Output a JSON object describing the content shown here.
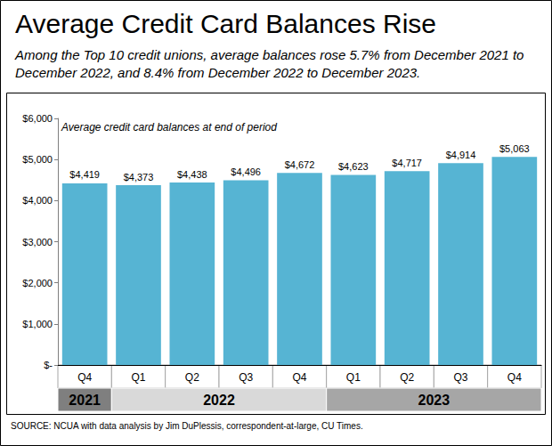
{
  "chart_data": {
    "type": "bar",
    "title": "Average Credit Card Balances Rise",
    "subtitle": "Among the Top 10 credit unions, average balances rose 5.7% from December 2021 to December 2022, and 8.4% from December 2022 to December 2023.",
    "annotation": "Average credit card balances at end of period",
    "source": "SOURCE: NCUA with data analysis by Jim DuPlessis, correspondent-at-large, CU Times.",
    "categories": [
      "Q4",
      "Q1",
      "Q2",
      "Q3",
      "Q4",
      "Q1",
      "Q2",
      "Q3",
      "Q4"
    ],
    "years": [
      "2021",
      "2022",
      "2022",
      "2022",
      "2022",
      "2023",
      "2023",
      "2023",
      "2023"
    ],
    "values": [
      4419,
      4373,
      4438,
      4496,
      4672,
      4623,
      4717,
      4914,
      5063
    ],
    "value_labels": [
      "$4,419",
      "$4,373",
      "$4,438",
      "$4,496",
      "$4,672",
      "$4,623",
      "$4,717",
      "$4,914",
      "$5,063"
    ],
    "color": "#56b4d3",
    "ylim": [
      0,
      6000
    ],
    "yticks": [
      {
        "value": 0,
        "label": "$-"
      },
      {
        "value": 1000,
        "label": "$1,000"
      },
      {
        "value": 2000,
        "label": "$2,000"
      },
      {
        "value": 3000,
        "label": "$3,000"
      },
      {
        "value": 4000,
        "label": "$4,000"
      },
      {
        "value": 5000,
        "label": "$5,000"
      },
      {
        "value": 6000,
        "label": "$6,000"
      }
    ],
    "grid": false,
    "data_labels": true
  }
}
